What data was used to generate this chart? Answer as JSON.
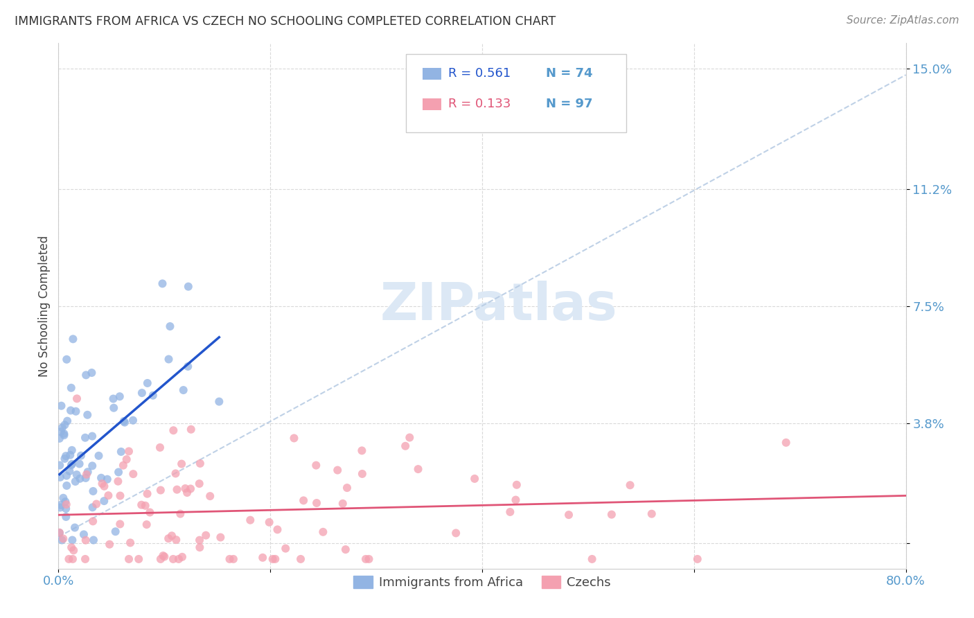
{
  "title": "IMMIGRANTS FROM AFRICA VS CZECH NO SCHOOLING COMPLETED CORRELATION CHART",
  "source": "Source: ZipAtlas.com",
  "ylabel": "No Schooling Completed",
  "ytick_values": [
    0.0,
    0.038,
    0.075,
    0.112,
    0.15
  ],
  "ytick_labels": [
    "",
    "3.8%",
    "7.5%",
    "11.2%",
    "15.0%"
  ],
  "xlim": [
    0.0,
    0.8
  ],
  "ylim": [
    -0.008,
    0.158
  ],
  "legend_blue_R": "R = 0.561",
  "legend_blue_N": "N = 74",
  "legend_pink_R": "R = 0.133",
  "legend_pink_N": "N = 97",
  "blue_color": "#92b4e3",
  "pink_color": "#f4a0b0",
  "blue_line_color": "#2255cc",
  "pink_line_color": "#e05577",
  "dashed_line_color": "#b8cce4",
  "grid_color": "#d0d0d0",
  "title_color": "#333333",
  "source_color": "#888888",
  "axis_label_color": "#444444",
  "tick_color": "#5599cc",
  "watermark_color": "#dce8f5",
  "blue_scatter_seed": 42,
  "pink_scatter_seed": 7,
  "blue_R": 0.561,
  "pink_R": 0.133,
  "blue_N": 74,
  "pink_N": 97
}
